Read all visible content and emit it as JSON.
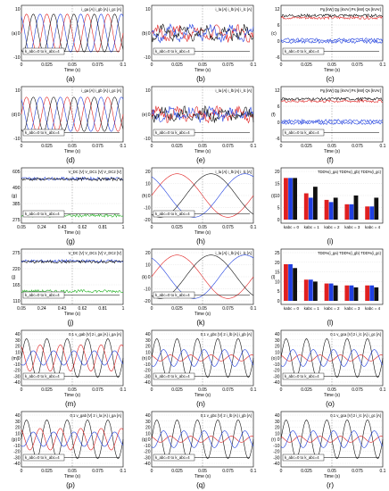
{
  "chart_data": [
    {
      "type": "line",
      "panel": "a",
      "ylabel": "(a)",
      "xlabel": "Time (s)",
      "x_ticks": [
        "0",
        "0.025",
        "0.05",
        "0.075",
        "0.1"
      ],
      "y_ticks": [
        "10",
        "0",
        "-10"
      ],
      "ylim": [
        -14,
        14
      ],
      "legend": [
        "i_ga [A]",
        "i_gb [A]",
        "i_gc [A]"
      ],
      "series": [
        {
          "name": "i_ga [A]",
          "color": "#e02020",
          "amplitude": 11
        },
        {
          "name": "i_gb [A]",
          "color": "#2040e0",
          "amplitude": 11
        },
        {
          "name": "i_gc [A]",
          "color": "#101010",
          "amplitude": 11
        }
      ],
      "annotation": "k_abc=0 to k_abc=4"
    },
    {
      "type": "line",
      "panel": "b",
      "ylabel": "(b)",
      "xlabel": "Time (s)",
      "x_ticks": [
        "0",
        "0.025",
        "0.05",
        "0.075",
        "0.1"
      ],
      "y_ticks": [
        "10",
        "0",
        "-10"
      ],
      "ylim": [
        -14,
        14
      ],
      "legend": [
        "i_la [A]",
        "i_lb [A]",
        "i_lc [A]"
      ],
      "series": [
        {
          "name": "i_la [A]",
          "color": "#e02020",
          "amplitude": 3
        },
        {
          "name": "i_lb [A]",
          "color": "#2040e0",
          "amplitude": 3
        },
        {
          "name": "i_lc [A]",
          "color": "#101010",
          "amplitude": 3
        }
      ],
      "annotation": "k_abc=0 to k_abc=4"
    },
    {
      "type": "line",
      "panel": "c",
      "ylabel": "(c)",
      "xlabel": "Time (s)",
      "x_ticks": [
        "0",
        "0.025",
        "0.05",
        "0.075",
        "0.1"
      ],
      "y_ticks": [
        "12",
        "6",
        "0",
        "-6"
      ],
      "ylim": [
        -8,
        14
      ],
      "legend": [
        "Pg [kW]",
        "Qg [kVAr]",
        "Ps [kW]",
        "Qs [kVAr]"
      ],
      "series": [
        {
          "name": "Pg [kW]",
          "color": "#e02020",
          "level": 10
        },
        {
          "name": "Qg [kVAr]",
          "color": "#2040e0",
          "level": 0
        },
        {
          "name": "Ps [kW]",
          "color": "#101010",
          "level": 11
        },
        {
          "name": "Qs [kVAr]",
          "color": "#2040e0",
          "level": -1
        }
      ],
      "annotation": "k_abc=0 to k_abc=4"
    },
    {
      "type": "line",
      "panel": "d",
      "ylabel": "(d)",
      "xlabel": "Time (s)",
      "x_ticks": [
        "0",
        "0.025",
        "0.05",
        "0.075",
        "0.1"
      ],
      "y_ticks": [
        "10",
        "0",
        "-10"
      ],
      "ylim": [
        -14,
        14
      ],
      "legend": [
        "i_ga [A]",
        "i_gb [A]",
        "i_gc [A]"
      ],
      "series": [
        {
          "name": "i_ga [A]",
          "color": "#e02020",
          "amplitude": 10
        },
        {
          "name": "i_gb [A]",
          "color": "#2040e0",
          "amplitude": 10
        },
        {
          "name": "i_gc [A]",
          "color": "#101010",
          "amplitude": 10
        }
      ],
      "annotation": "k_abc=0 to k_abc=4"
    },
    {
      "type": "line",
      "panel": "e",
      "ylabel": "(e)",
      "xlabel": "Time (s)",
      "x_ticks": [
        "0",
        "0.025",
        "0.05",
        "0.075",
        "0.1"
      ],
      "y_ticks": [
        "10",
        "0",
        "-10"
      ],
      "ylim": [
        -14,
        14
      ],
      "legend": [
        "i_la [A]",
        "i_lb [A]",
        "i_lc [A]"
      ],
      "series": [
        {
          "name": "i_la [A]",
          "color": "#e02020",
          "amplitude": 2.5
        },
        {
          "name": "i_lb [A]",
          "color": "#2040e0",
          "amplitude": 2.5
        },
        {
          "name": "i_lc [A]",
          "color": "#101010",
          "amplitude": 2.5
        }
      ],
      "annotation": "k_abc=0 to k_abc=4"
    },
    {
      "type": "line",
      "panel": "f",
      "ylabel": "(f)",
      "xlabel": "Time (s)",
      "x_ticks": [
        "0",
        "0.025",
        "0.05",
        "0.075",
        "0.1"
      ],
      "y_ticks": [
        "12",
        "6",
        "0",
        "-6"
      ],
      "ylim": [
        -8,
        14
      ],
      "legend": [
        "Pg [kW]",
        "Qg [kVAr]",
        "Ps [kW]",
        "Qs [kVAr]"
      ],
      "series": [
        {
          "name": "Pg [kW]",
          "color": "#e02020",
          "level": 9
        },
        {
          "name": "Qg [kVAr]",
          "color": "#2040e0",
          "level": 0
        },
        {
          "name": "Ps [kW]",
          "color": "#101010",
          "level": 10
        },
        {
          "name": "Qs [kVAr]",
          "color": "#2040e0",
          "level": -1
        }
      ],
      "annotation": "k_abc=0 to k_abc=4"
    },
    {
      "type": "line",
      "panel": "g",
      "ylabel": "(g)",
      "xlabel": "Time (s)",
      "x_ticks": [
        "0.05",
        "0.24",
        "0.43",
        "0.62",
        "0.81",
        "1"
      ],
      "y_ticks": [
        "605",
        "490",
        "385",
        "275"
      ],
      "ylim": [
        250,
        620
      ],
      "legend": [
        "V_DC [V]",
        "V_DC1 [V]",
        "V_DC2 [V]"
      ],
      "series": [
        {
          "name": "V_DC [V]",
          "color": "#2040e0",
          "level": 565
        },
        {
          "name": "V_DC1 [V]",
          "color": "#101010",
          "level": 560
        },
        {
          "name": "V_DC2 [V]",
          "color": "#20b020",
          "level": 280
        }
      ],
      "annotation": "k_abc=0 to k_abc=4"
    },
    {
      "type": "line",
      "panel": "h",
      "ylabel": "(h)",
      "xlabel": "Time (s)",
      "x_ticks": [
        "0",
        "0.025",
        "0.05",
        "0.075",
        "0.1"
      ],
      "y_ticks": [
        "20",
        "10",
        "0",
        "-10",
        "-20"
      ],
      "ylim": [
        -20,
        20
      ],
      "legend": [
        "i_la [A]",
        "i_lb [A]",
        "i_lc [A]"
      ],
      "series": [
        {
          "name": "i_la [A]",
          "color": "#e02020",
          "amplitude": 18
        },
        {
          "name": "i_lb [A]",
          "color": "#2040e0",
          "amplitude": 18
        },
        {
          "name": "i_lc [A]",
          "color": "#101010",
          "amplitude": 18
        }
      ],
      "annotation": "k_abc=0 to k_abc=4"
    },
    {
      "type": "bar",
      "panel": "i",
      "ylabel": "(i)",
      "categories": [
        "kabc = 0",
        "kabc = 1",
        "kabc = 2",
        "kabc = 3",
        "kabc = 4"
      ],
      "y_ticks": [
        "20",
        "15",
        "10",
        "5",
        "0"
      ],
      "ylim": [
        0,
        22
      ],
      "legend": [
        "TDD%(i_ga)",
        "TDD%(i_gb)",
        "TDD%(i_gc)"
      ],
      "series": [
        {
          "name": "TDD%(i_ga)",
          "color": "#e02020",
          "values": [
            19,
            12,
            9,
            7,
            6
          ]
        },
        {
          "name": "TDD%(i_gb)",
          "color": "#2040e0",
          "values": [
            19,
            10,
            8,
            7,
            6
          ]
        },
        {
          "name": "TDD%(i_gc)",
          "color": "#101010",
          "values": [
            19,
            15,
            10,
            11,
            10
          ]
        }
      ]
    },
    {
      "type": "line",
      "panel": "j",
      "ylabel": "(j)",
      "xlabel": "Time (s)",
      "x_ticks": [
        "0.05",
        "0.24",
        "0.43",
        "0.62",
        "0.81",
        "1"
      ],
      "y_ticks": [
        "275",
        "220",
        "165",
        "110"
      ],
      "ylim": [
        100,
        300
      ],
      "legend": [
        "V_DC [V]",
        "V_DC1 [V]",
        "V_DC2 [V]"
      ],
      "series": [
        {
          "name": "V_DC [V]",
          "color": "#2040e0",
          "level": 265
        },
        {
          "name": "V_DC1 [V]",
          "color": "#101010",
          "level": 262
        },
        {
          "name": "V_DC2 [V]",
          "color": "#20b020",
          "level": 140
        }
      ],
      "annotation": "k_abc=0 to k_abc=4"
    },
    {
      "type": "line",
      "panel": "k",
      "ylabel": "(k)",
      "xlabel": "Time (s)",
      "x_ticks": [
        "0",
        "0.025",
        "0.05",
        "0.075",
        "0.1"
      ],
      "y_ticks": [
        "20",
        "10",
        "0",
        "-10",
        "-20"
      ],
      "ylim": [
        -20,
        20
      ],
      "legend": [
        "i_la [A]",
        "i_lb [A]",
        "i_lc [A]"
      ],
      "series": [
        {
          "name": "i_la [A]",
          "color": "#e02020",
          "amplitude": 18
        },
        {
          "name": "i_lb [A]",
          "color": "#2040e0",
          "amplitude": 18
        },
        {
          "name": "i_lc [A]",
          "color": "#101010",
          "amplitude": 18
        }
      ],
      "annotation": "k_abc=0 to k_abc=4"
    },
    {
      "type": "bar",
      "panel": "l",
      "ylabel": "(l)",
      "categories": [
        "kabc = 0",
        "kabc = 1",
        "kabc = 2",
        "kabc = 3",
        "kabc = 4"
      ],
      "y_ticks": [
        "25",
        "20",
        "15",
        "10",
        "5",
        "0"
      ],
      "ylim": [
        0,
        25
      ],
      "legend": [
        "TDD%(i_ga)",
        "TDD%(i_gb)",
        "TDD%(i_gc)"
      ],
      "series": [
        {
          "name": "TDD%(i_ga)",
          "color": "#e02020",
          "values": [
            19,
            11,
            9,
            8,
            8
          ]
        },
        {
          "name": "TDD%(i_gb)",
          "color": "#2040e0",
          "values": [
            19,
            11,
            9,
            8,
            8
          ]
        },
        {
          "name": "TDD%(i_gc)",
          "color": "#101010",
          "values": [
            17,
            10,
            8,
            7,
            7
          ]
        }
      ]
    },
    {
      "type": "line",
      "panel": "m",
      "ylabel": "(m)",
      "xlabel": "Time (s)",
      "x_ticks": [
        "0",
        "0.025",
        "0.05",
        "0.075",
        "0.1"
      ],
      "y_ticks": [
        "40",
        "30",
        "20",
        "10",
        "0",
        "-10",
        "-20",
        "-30",
        "-40"
      ],
      "ylim": [
        -40,
        40
      ],
      "legend": [
        "0.1 v_gab [V]",
        "2 i_ga [A]",
        "i_ga [A]"
      ],
      "series": [
        {
          "name": "0.1 v_gab [V]",
          "color": "#101010",
          "amplitude": 32
        },
        {
          "name": "2 i_ga [A]",
          "color": "#e02020",
          "amplitude": 22
        },
        {
          "name": "i_ga [A]",
          "color": "#2040e0",
          "amplitude": 12
        }
      ],
      "annotation": "k_abc=0 to k_abc=4"
    },
    {
      "type": "line",
      "panel": "n",
      "ylabel": "(n)",
      "xlabel": "Time (s)",
      "x_ticks": [
        "0",
        "0.025",
        "0.05",
        "0.075",
        "0.1"
      ],
      "y_ticks": [
        "40",
        "30",
        "20",
        "10",
        "0",
        "-10",
        "-20",
        "-30",
        "-40"
      ],
      "ylim": [
        -40,
        40
      ],
      "legend": [
        "0.1 v_gbc [V]",
        "2 i_lb [A]",
        "i_gb [A]"
      ],
      "series": [
        {
          "name": "0.1 v_gbc [V]",
          "color": "#101010",
          "amplitude": 32
        },
        {
          "name": "2 i_lb [A]",
          "color": "#e02020",
          "amplitude": 5
        },
        {
          "name": "i_gb [A]",
          "color": "#2040e0",
          "amplitude": 14
        }
      ],
      "annotation": "k_abc=0 to k_abc=4"
    },
    {
      "type": "line",
      "panel": "o",
      "ylabel": "(o)",
      "xlabel": "Time (s)",
      "x_ticks": [
        "0",
        "0.025",
        "0.05",
        "0.075",
        "0.1"
      ],
      "y_ticks": [
        "40",
        "30",
        "20",
        "10",
        "0",
        "-10",
        "-20",
        "-30",
        "-40"
      ],
      "ylim": [
        -40,
        40
      ],
      "legend": [
        "0.1 v_gca [V]",
        "2 i_lc [A]",
        "i_gc [A]"
      ],
      "series": [
        {
          "name": "0.1 v_gca [V]",
          "color": "#101010",
          "amplitude": 32
        },
        {
          "name": "2 i_lc [A]",
          "color": "#e02020",
          "amplitude": 5
        },
        {
          "name": "i_gc [A]",
          "color": "#2040e0",
          "amplitude": 14
        }
      ],
      "annotation": "k_abc=0 to k_abc=4"
    },
    {
      "type": "line",
      "panel": "p",
      "ylabel": "(p)",
      "xlabel": "Time (s)",
      "x_ticks": [
        "0",
        "0.025",
        "0.05",
        "0.075",
        "0.1"
      ],
      "y_ticks": [
        "40",
        "30",
        "20",
        "10",
        "0",
        "-10",
        "-20",
        "-30",
        "-40"
      ],
      "ylim": [
        -40,
        40
      ],
      "legend": [
        "0.1 v_gab [V]",
        "2 i_la [A]",
        "i_ga [A]"
      ],
      "series": [
        {
          "name": "0.1 v_gab [V]",
          "color": "#101010",
          "amplitude": 32
        },
        {
          "name": "2 i_la [A]",
          "color": "#e02020",
          "amplitude": 18
        },
        {
          "name": "i_ga [A]",
          "color": "#2040e0",
          "amplitude": 12
        }
      ],
      "annotation": "k_abc=0 to k_abc=4"
    },
    {
      "type": "line",
      "panel": "q",
      "ylabel": "(q)",
      "xlabel": "Time (s)",
      "x_ticks": [
        "0",
        "0.025",
        "0.05",
        "0.075",
        "0.1"
      ],
      "y_ticks": [
        "40",
        "30",
        "20",
        "10",
        "0",
        "-10",
        "-20",
        "-30",
        "-40"
      ],
      "ylim": [
        -40,
        40
      ],
      "legend": [
        "0.1 v_gbc [V]",
        "2 i_lb [A]",
        "i_gb [A]"
      ],
      "series": [
        {
          "name": "0.1 v_gbc [V]",
          "color": "#101010",
          "amplitude": 32
        },
        {
          "name": "2 i_lb [A]",
          "color": "#e02020",
          "amplitude": 5
        },
        {
          "name": "i_gb [A]",
          "color": "#2040e0",
          "amplitude": 14
        }
      ],
      "annotation": "k_abc=0 to k_abc=4"
    },
    {
      "type": "line",
      "panel": "r",
      "ylabel": "(r)",
      "xlabel": "Time (s)",
      "x_ticks": [
        "0",
        "0.025",
        "0.05",
        "0.075",
        "0.1"
      ],
      "y_ticks": [
        "40",
        "30",
        "20",
        "10",
        "0",
        "-10",
        "-20",
        "-30",
        "-40"
      ],
      "ylim": [
        -40,
        40
      ],
      "legend": [
        "0.1 v_gca [V]",
        "2 i_lc [A]",
        "i_gc [A]"
      ],
      "series": [
        {
          "name": "0.1 v_gca [V]",
          "color": "#101010",
          "amplitude": 32
        },
        {
          "name": "2 i_lc [A]",
          "color": "#e02020",
          "amplitude": 5
        },
        {
          "name": "i_gc [A]",
          "color": "#2040e0",
          "amplitude": 14
        }
      ],
      "annotation": "k_abc=0 to k_abc=4"
    }
  ]
}
